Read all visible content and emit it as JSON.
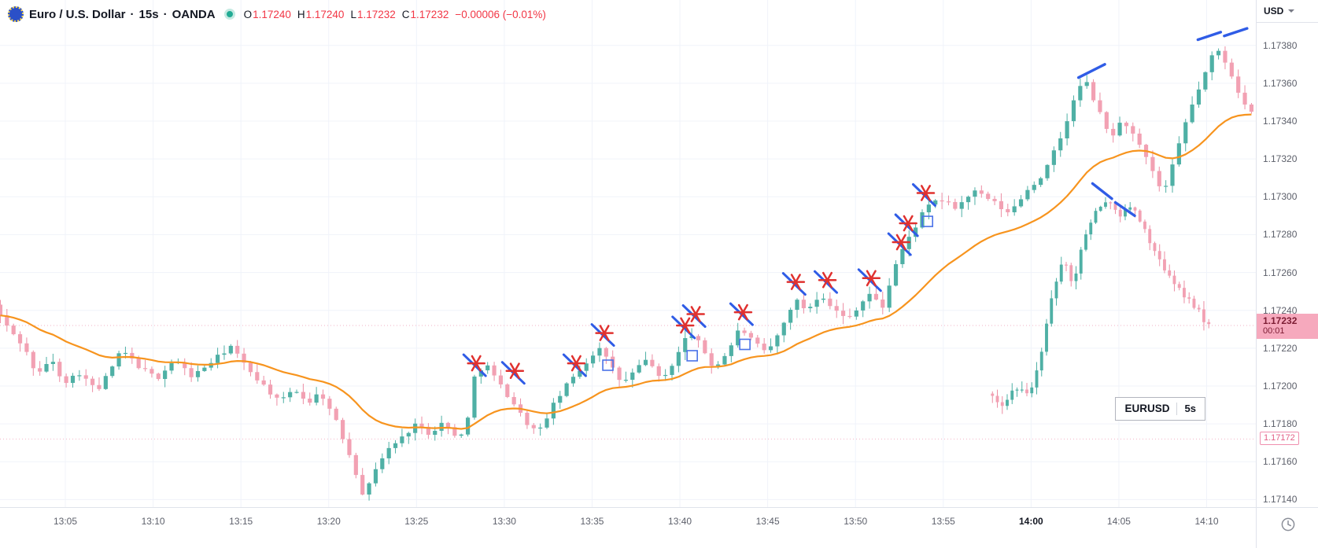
{
  "header": {
    "symbol_title": "Euro / U.S. Dollar",
    "separator": "·",
    "timeframe": "15s",
    "exchange": "OANDA",
    "ohlc": {
      "o_label": "O",
      "o": "1.17240",
      "h_label": "H",
      "h": "1.17240",
      "l_label": "L",
      "l": "1.17232",
      "c_label": "C",
      "c": "1.17232",
      "change": "−0.00006 (−0.01%)"
    }
  },
  "axes": {
    "currency_label": "USD",
    "price_ticks": [
      "1.17380",
      "1.17360",
      "1.17340",
      "1.17320",
      "1.17300",
      "1.17280",
      "1.17260",
      "1.17240",
      "1.17220",
      "1.17200",
      "1.17180",
      "1.17160",
      "1.17140"
    ],
    "time_ticks": [
      {
        "label": "13:05",
        "t": 5
      },
      {
        "label": "13:10",
        "t": 10
      },
      {
        "label": "13:15",
        "t": 15
      },
      {
        "label": "13:20",
        "t": 20
      },
      {
        "label": "13:25",
        "t": 25
      },
      {
        "label": "13:30",
        "t": 30
      },
      {
        "label": "13:35",
        "t": 35
      },
      {
        "label": "13:40",
        "t": 40
      },
      {
        "label": "13:45",
        "t": 45
      },
      {
        "label": "13:50",
        "t": 50
      },
      {
        "label": "13:55",
        "t": 55
      },
      {
        "label": "14:00",
        "t": 60,
        "bold": true
      },
      {
        "label": "14:05",
        "t": 65
      },
      {
        "label": "14:10",
        "t": 70
      }
    ],
    "price_badge": {
      "price": "1.17232",
      "countdown": "00:01",
      "value": 1.17232
    },
    "low_label": {
      "price": "1.17172",
      "value": 1.17172
    }
  },
  "overlay_box": {
    "symbol": "EURUSD",
    "interval": "5s",
    "t": 64.8,
    "p": 1.17188
  },
  "chart_data": {
    "type": "candlestick",
    "symbol": "EURUSD",
    "title": "Euro / U.S. Dollar",
    "interval": "15s",
    "exchange": "OANDA",
    "legend_position": "top-left",
    "grid": true,
    "time_range": [
      1.28,
      72.8
    ],
    "price_range": [
      1.17136,
      1.17404
    ],
    "time_units": "minutes after 13:00",
    "seed": 42,
    "ma": {
      "type": "EMA",
      "period": 24
    },
    "main_series": {
      "name": "EURUSD 15s",
      "candle_minutes": 0.375,
      "path": [
        [
          1.3,
          1.17243
        ],
        [
          2.0,
          1.17232
        ],
        [
          3.0,
          1.17221
        ],
        [
          3.8,
          1.17205
        ],
        [
          4.5,
          1.17215
        ],
        [
          5.3,
          1.17202
        ],
        [
          6.2,
          1.17207
        ],
        [
          7.2,
          1.17197
        ],
        [
          8.6,
          1.17219
        ],
        [
          9.6,
          1.1721
        ],
        [
          10.6,
          1.17204
        ],
        [
          11.6,
          1.17214
        ],
        [
          12.6,
          1.17205
        ],
        [
          13.6,
          1.17212
        ],
        [
          14.8,
          1.17221
        ],
        [
          15.6,
          1.17211
        ],
        [
          16.6,
          1.17201
        ],
        [
          17.6,
          1.17191
        ],
        [
          18.4,
          1.17199
        ],
        [
          19.2,
          1.17191
        ],
        [
          19.9,
          1.17197
        ],
        [
          20.8,
          1.17181
        ],
        [
          21.6,
          1.17163
        ],
        [
          22.4,
          1.17141
        ],
        [
          23.1,
          1.17158
        ],
        [
          23.9,
          1.17168
        ],
        [
          24.6,
          1.17173
        ],
        [
          25.3,
          1.1718
        ],
        [
          26.1,
          1.17175
        ],
        [
          26.9,
          1.17181
        ],
        [
          27.6,
          1.17173
        ],
        [
          28.2,
          1.17177
        ],
        [
          28.7,
          1.17206
        ],
        [
          29.3,
          1.17212
        ],
        [
          30.1,
          1.17201
        ],
        [
          30.9,
          1.17191
        ],
        [
          31.6,
          1.17181
        ],
        [
          32.3,
          1.17175
        ],
        [
          33.1,
          1.17189
        ],
        [
          33.9,
          1.172
        ],
        [
          34.4,
          1.17206
        ],
        [
          35.1,
          1.17213
        ],
        [
          35.8,
          1.17221
        ],
        [
          36.4,
          1.17211
        ],
        [
          37.1,
          1.17201
        ],
        [
          37.9,
          1.17209
        ],
        [
          38.6,
          1.17215
        ],
        [
          39.3,
          1.17202
        ],
        [
          40.1,
          1.17214
        ],
        [
          40.9,
          1.17229
        ],
        [
          41.6,
          1.17221
        ],
        [
          42.3,
          1.17209
        ],
        [
          43.1,
          1.17218
        ],
        [
          43.8,
          1.17231
        ],
        [
          44.6,
          1.17223
        ],
        [
          45.3,
          1.17217
        ],
        [
          46.1,
          1.17229
        ],
        [
          46.9,
          1.17246
        ],
        [
          47.6,
          1.1724
        ],
        [
          48.4,
          1.17249
        ],
        [
          49.1,
          1.17241
        ],
        [
          49.9,
          1.17235
        ],
        [
          50.6,
          1.17243
        ],
        [
          51.2,
          1.17249
        ],
        [
          51.9,
          1.17241
        ],
        [
          52.6,
          1.17263
        ],
        [
          53.1,
          1.17273
        ],
        [
          53.7,
          1.17283
        ],
        [
          54.3,
          1.17293
        ],
        [
          55.1,
          1.17299
        ],
        [
          56.1,
          1.17294
        ],
        [
          57.1,
          1.17303
        ],
        [
          58.1,
          1.17298
        ],
        [
          59.1,
          1.17291
        ],
        [
          60.1,
          1.17303
        ],
        [
          61.1,
          1.17312
        ],
        [
          62.1,
          1.17332
        ],
        [
          62.9,
          1.17353
        ],
        [
          63.4,
          1.17363
        ],
        [
          64.1,
          1.17348
        ],
        [
          64.9,
          1.17331
        ],
        [
          65.6,
          1.17341
        ],
        [
          66.3,
          1.17331
        ],
        [
          67.1,
          1.17317
        ],
        [
          67.9,
          1.17301
        ],
        [
          68.6,
          1.17321
        ],
        [
          69.3,
          1.17343
        ],
        [
          70.1,
          1.17361
        ],
        [
          70.9,
          1.17379
        ],
        [
          71.6,
          1.17369
        ],
        [
          72.3,
          1.17353
        ],
        [
          72.8,
          1.17344
        ]
      ]
    },
    "overlay_series": {
      "name": "EURUSD 5s",
      "candle_minutes": 0.28,
      "path": [
        [
          57.8,
          1.17196
        ],
        [
          58.6,
          1.1719
        ],
        [
          59.4,
          1.17199
        ],
        [
          60.2,
          1.17195
        ],
        [
          60.9,
          1.1722
        ],
        [
          61.5,
          1.17248
        ],
        [
          62.1,
          1.17268
        ],
        [
          62.7,
          1.17252
        ],
        [
          63.3,
          1.17279
        ],
        [
          63.9,
          1.17291
        ],
        [
          64.7,
          1.17299
        ],
        [
          65.4,
          1.1729
        ],
        [
          66.1,
          1.17296
        ],
        [
          66.8,
          1.17281
        ],
        [
          67.5,
          1.17268
        ],
        [
          68.2,
          1.17257
        ],
        [
          69.0,
          1.17248
        ],
        [
          69.8,
          1.1724
        ],
        [
          70.3,
          1.17232
        ]
      ]
    },
    "asterisk_markers": [
      [
        28.4,
        1.17212
      ],
      [
        30.6,
        1.17208
      ],
      [
        34.1,
        1.17212
      ],
      [
        35.7,
        1.17228
      ],
      [
        40.3,
        1.17232
      ],
      [
        40.9,
        1.17238
      ],
      [
        43.6,
        1.17239
      ],
      [
        46.6,
        1.17255
      ],
      [
        48.4,
        1.17256
      ],
      [
        50.9,
        1.17257
      ],
      [
        52.6,
        1.17276
      ],
      [
        53.0,
        1.17286
      ],
      [
        54.0,
        1.17302
      ]
    ],
    "square_markers": [
      [
        35.9,
        1.17211
      ],
      [
        40.7,
        1.17216
      ],
      [
        43.7,
        1.17222
      ],
      [
        54.1,
        1.17287
      ]
    ],
    "blue_segments": [
      [
        62.7,
        1.17363,
        64.2,
        1.1737
      ],
      [
        63.5,
        1.17307,
        64.6,
        1.17299
      ],
      [
        64.8,
        1.17297,
        65.9,
        1.1729
      ],
      [
        69.5,
        1.17383,
        70.8,
        1.17387
      ],
      [
        71.0,
        1.17385,
        72.3,
        1.17389
      ]
    ],
    "dotted_price_lines": [
      1.17232,
      1.17172
    ]
  },
  "colors": {
    "up": "#4fb0a5",
    "down": "#f2a1b3",
    "down_wick": "#ec8da3",
    "ma": "#f7941e",
    "marker_red": "#e0312f",
    "annotation_blue": "#2f5ce6",
    "badge_bg": "#f6a9bd",
    "badge_text": "#7c1c33",
    "grid": "#f0f3fa",
    "axis_text": "#5d606b",
    "value_red": "#f23645",
    "dotted_line": "#f0a0b8"
  }
}
